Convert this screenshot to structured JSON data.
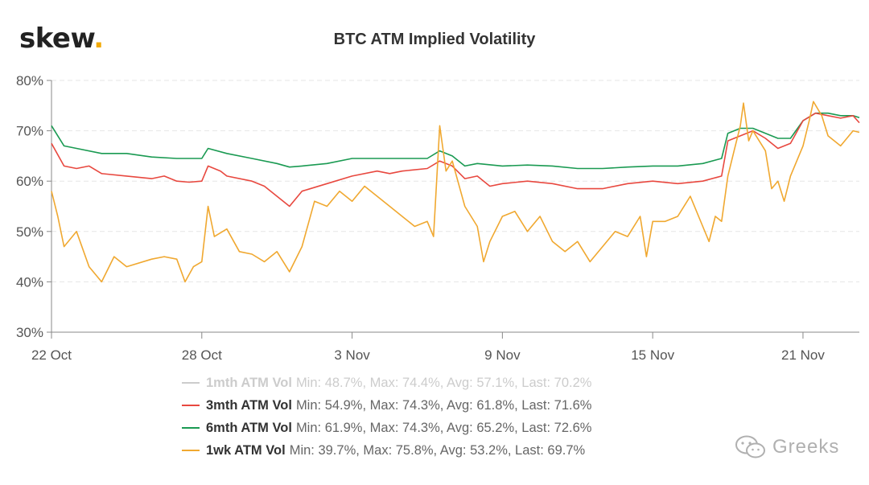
{
  "brand": {
    "name": "skew",
    "dot": "."
  },
  "watermark": {
    "text": "Greeks",
    "icon": "wechat-icon"
  },
  "colors": {
    "1mth": "#cccccc",
    "3mth": "#e8483f",
    "6mth": "#1a9a52",
    "1wk": "#f0a830",
    "grid": "#e6e6e6",
    "axis": "#888888"
  },
  "chart_data": {
    "type": "line",
    "title": "BTC ATM Implied Volatility",
    "xlabel": "",
    "ylabel": "",
    "x_range": [
      "2020-10-22",
      "2020-11-23T06:00"
    ],
    "ylim": [
      30,
      80
    ],
    "y_ticks": [
      30,
      40,
      50,
      60,
      70,
      80
    ],
    "y_tick_labels": [
      "30%",
      "40%",
      "50%",
      "60%",
      "70%",
      "80%"
    ],
    "x_ticks": [
      "2020-10-22",
      "2020-10-28",
      "2020-11-03",
      "2020-11-09",
      "2020-11-15",
      "2020-11-21"
    ],
    "x_tick_labels": [
      "22 Oct",
      "28 Oct",
      "3 Nov",
      "9 Nov",
      "15 Nov",
      "21 Nov"
    ],
    "grid": true,
    "legend_position": "bottom",
    "series": [
      {
        "key": "1mth",
        "name": "1mth ATM Vol",
        "stats": "Min: 48.7%, Max: 74.4%, Avg: 57.1%, Last: 70.2%",
        "visible": false,
        "points": []
      },
      {
        "key": "3mth",
        "name": "3mth ATM Vol",
        "stats": "Min: 54.9%, Max: 74.3%, Avg: 61.8%, Last: 71.6%",
        "visible": true,
        "points": [
          [
            "2020-10-22",
            67.5
          ],
          [
            "2020-10-22T12:00",
            63
          ],
          [
            "2020-10-23",
            62.5
          ],
          [
            "2020-10-23T12:00",
            63
          ],
          [
            "2020-10-24",
            61.5
          ],
          [
            "2020-10-25",
            61
          ],
          [
            "2020-10-26",
            60.5
          ],
          [
            "2020-10-26T12:00",
            61
          ],
          [
            "2020-10-27",
            60
          ],
          [
            "2020-10-27T12:00",
            59.8
          ],
          [
            "2020-10-28",
            60
          ],
          [
            "2020-10-28T06:00",
            63
          ],
          [
            "2020-10-28T18:00",
            62
          ],
          [
            "2020-10-29",
            61
          ],
          [
            "2020-10-30",
            60
          ],
          [
            "2020-10-30T12:00",
            59
          ],
          [
            "2020-10-31",
            57
          ],
          [
            "2020-10-31T12:00",
            55
          ],
          [
            "2020-11-01",
            58
          ],
          [
            "2020-11-02",
            59.5
          ],
          [
            "2020-11-03",
            61
          ],
          [
            "2020-11-04",
            62
          ],
          [
            "2020-11-04T12:00",
            61.5
          ],
          [
            "2020-11-05",
            62
          ],
          [
            "2020-11-06",
            62.5
          ],
          [
            "2020-11-06T12:00",
            64
          ],
          [
            "2020-11-07",
            63
          ],
          [
            "2020-11-07T12:00",
            60.5
          ],
          [
            "2020-11-08",
            61
          ],
          [
            "2020-11-08T12:00",
            59
          ],
          [
            "2020-11-09",
            59.5
          ],
          [
            "2020-11-10",
            60
          ],
          [
            "2020-11-11",
            59.5
          ],
          [
            "2020-11-12",
            58.5
          ],
          [
            "2020-11-13",
            58.5
          ],
          [
            "2020-11-14",
            59.5
          ],
          [
            "2020-11-15",
            60
          ],
          [
            "2020-11-16",
            59.5
          ],
          [
            "2020-11-17",
            60
          ],
          [
            "2020-11-17T18:00",
            61
          ],
          [
            "2020-11-18",
            68
          ],
          [
            "2020-11-18T12:00",
            69
          ],
          [
            "2020-11-19",
            70
          ],
          [
            "2020-11-19T12:00",
            68.5
          ],
          [
            "2020-11-20",
            66.5
          ],
          [
            "2020-11-20T12:00",
            67.5
          ],
          [
            "2020-11-21",
            72
          ],
          [
            "2020-11-21T12:00",
            73.5
          ],
          [
            "2020-11-22",
            73
          ],
          [
            "2020-11-22T12:00",
            72.5
          ],
          [
            "2020-11-23",
            73
          ],
          [
            "2020-11-23T06:00",
            71.6
          ]
        ]
      },
      {
        "key": "6mth",
        "name": "6mth ATM Vol",
        "stats": "Min: 61.9%, Max: 74.3%, Avg: 65.2%, Last: 72.6%",
        "visible": true,
        "points": [
          [
            "2020-10-22",
            71
          ],
          [
            "2020-10-22T12:00",
            67
          ],
          [
            "2020-10-23",
            66.5
          ],
          [
            "2020-10-24",
            65.5
          ],
          [
            "2020-10-25",
            65.5
          ],
          [
            "2020-10-26",
            64.8
          ],
          [
            "2020-10-27",
            64.5
          ],
          [
            "2020-10-27T12:00",
            64.5
          ],
          [
            "2020-10-28",
            64.5
          ],
          [
            "2020-10-28T06:00",
            66.5
          ],
          [
            "2020-10-29",
            65.5
          ],
          [
            "2020-10-30",
            64.5
          ],
          [
            "2020-10-31",
            63.5
          ],
          [
            "2020-10-31T12:00",
            62.8
          ],
          [
            "2020-11-01",
            63
          ],
          [
            "2020-11-02",
            63.5
          ],
          [
            "2020-11-03",
            64.5
          ],
          [
            "2020-11-04",
            64.5
          ],
          [
            "2020-11-05",
            64.5
          ],
          [
            "2020-11-06",
            64.5
          ],
          [
            "2020-11-06T12:00",
            66
          ],
          [
            "2020-11-07",
            65
          ],
          [
            "2020-11-07T12:00",
            63
          ],
          [
            "2020-11-08",
            63.5
          ],
          [
            "2020-11-09",
            63
          ],
          [
            "2020-11-10",
            63.2
          ],
          [
            "2020-11-11",
            63
          ],
          [
            "2020-11-12",
            62.5
          ],
          [
            "2020-11-13",
            62.5
          ],
          [
            "2020-11-14",
            62.8
          ],
          [
            "2020-11-15",
            63
          ],
          [
            "2020-11-16",
            63
          ],
          [
            "2020-11-17",
            63.5
          ],
          [
            "2020-11-17T18:00",
            64.5
          ],
          [
            "2020-11-18",
            69.5
          ],
          [
            "2020-11-18T12:00",
            70.5
          ],
          [
            "2020-11-19",
            70.5
          ],
          [
            "2020-11-19T12:00",
            69.5
          ],
          [
            "2020-11-20",
            68.5
          ],
          [
            "2020-11-20T12:00",
            68.5
          ],
          [
            "2020-11-21",
            72
          ],
          [
            "2020-11-21T12:00",
            73.5
          ],
          [
            "2020-11-22",
            73.5
          ],
          [
            "2020-11-22T12:00",
            73
          ],
          [
            "2020-11-23",
            73
          ],
          [
            "2020-11-23T06:00",
            72.6
          ]
        ]
      },
      {
        "key": "1wk",
        "name": "1wk ATM Vol",
        "stats": "Min: 39.7%, Max: 75.8%, Avg: 53.2%, Last: 69.7%",
        "visible": true,
        "points": [
          [
            "2020-10-22",
            58
          ],
          [
            "2020-10-22T06:00",
            53
          ],
          [
            "2020-10-22T12:00",
            47
          ],
          [
            "2020-10-23",
            50
          ],
          [
            "2020-10-23T12:00",
            43
          ],
          [
            "2020-10-24",
            40
          ],
          [
            "2020-10-24T12:00",
            45
          ],
          [
            "2020-10-25",
            43
          ],
          [
            "2020-10-26",
            44.5
          ],
          [
            "2020-10-26T12:00",
            45
          ],
          [
            "2020-10-27",
            44.5
          ],
          [
            "2020-10-27T08:00",
            40
          ],
          [
            "2020-10-27T16:00",
            43
          ],
          [
            "2020-10-28",
            44
          ],
          [
            "2020-10-28T06:00",
            55
          ],
          [
            "2020-10-28T12:00",
            49
          ],
          [
            "2020-10-29",
            50.5
          ],
          [
            "2020-10-29T12:00",
            46
          ],
          [
            "2020-10-30",
            45.5
          ],
          [
            "2020-10-30T12:00",
            44
          ],
          [
            "2020-10-31",
            46
          ],
          [
            "2020-10-31T12:00",
            42
          ],
          [
            "2020-11-01",
            47
          ],
          [
            "2020-11-01T12:00",
            56
          ],
          [
            "2020-11-02",
            55
          ],
          [
            "2020-11-02T12:00",
            58
          ],
          [
            "2020-11-03",
            56
          ],
          [
            "2020-11-03T12:00",
            59
          ],
          [
            "2020-11-04",
            57
          ],
          [
            "2020-11-04T12:00",
            55
          ],
          [
            "2020-11-05",
            53
          ],
          [
            "2020-11-05T12:00",
            51
          ],
          [
            "2020-11-06",
            52
          ],
          [
            "2020-11-06T06:00",
            49
          ],
          [
            "2020-11-06T12:00",
            71
          ],
          [
            "2020-11-06T18:00",
            62
          ],
          [
            "2020-11-07",
            64
          ],
          [
            "2020-11-07T12:00",
            55
          ],
          [
            "2020-11-08",
            51
          ],
          [
            "2020-11-08T06:00",
            44
          ],
          [
            "2020-11-08T12:00",
            48
          ],
          [
            "2020-11-09",
            53
          ],
          [
            "2020-11-09T12:00",
            54
          ],
          [
            "2020-11-10",
            50
          ],
          [
            "2020-11-10T12:00",
            53
          ],
          [
            "2020-11-11",
            48
          ],
          [
            "2020-11-11T12:00",
            46
          ],
          [
            "2020-11-12",
            48
          ],
          [
            "2020-11-12T12:00",
            44
          ],
          [
            "2020-11-13",
            47
          ],
          [
            "2020-11-13T12:00",
            50
          ],
          [
            "2020-11-14",
            49
          ],
          [
            "2020-11-14T12:00",
            53
          ],
          [
            "2020-11-14T18:00",
            45
          ],
          [
            "2020-11-15",
            52
          ],
          [
            "2020-11-15T12:00",
            52
          ],
          [
            "2020-11-16",
            53
          ],
          [
            "2020-11-16T12:00",
            57
          ],
          [
            "2020-11-17",
            51
          ],
          [
            "2020-11-17T06:00",
            48
          ],
          [
            "2020-11-17T12:00",
            53
          ],
          [
            "2020-11-17T18:00",
            52
          ],
          [
            "2020-11-18",
            61
          ],
          [
            "2020-11-18T06:00",
            66
          ],
          [
            "2020-11-18T12:00",
            71
          ],
          [
            "2020-11-18T15:00",
            75.5
          ],
          [
            "2020-11-18T20:00",
            68
          ],
          [
            "2020-11-19",
            70
          ],
          [
            "2020-11-19T12:00",
            66
          ],
          [
            "2020-11-19T18:00",
            58.5
          ],
          [
            "2020-11-20",
            60
          ],
          [
            "2020-11-20T06:00",
            56
          ],
          [
            "2020-11-20T12:00",
            61
          ],
          [
            "2020-11-21",
            67
          ],
          [
            "2020-11-21T06:00",
            72
          ],
          [
            "2020-11-21T10:00",
            75.8
          ],
          [
            "2020-11-21T18:00",
            73
          ],
          [
            "2020-11-22",
            69
          ],
          [
            "2020-11-22T12:00",
            67
          ],
          [
            "2020-11-23",
            70
          ],
          [
            "2020-11-23T06:00",
            69.7
          ]
        ]
      }
    ]
  }
}
